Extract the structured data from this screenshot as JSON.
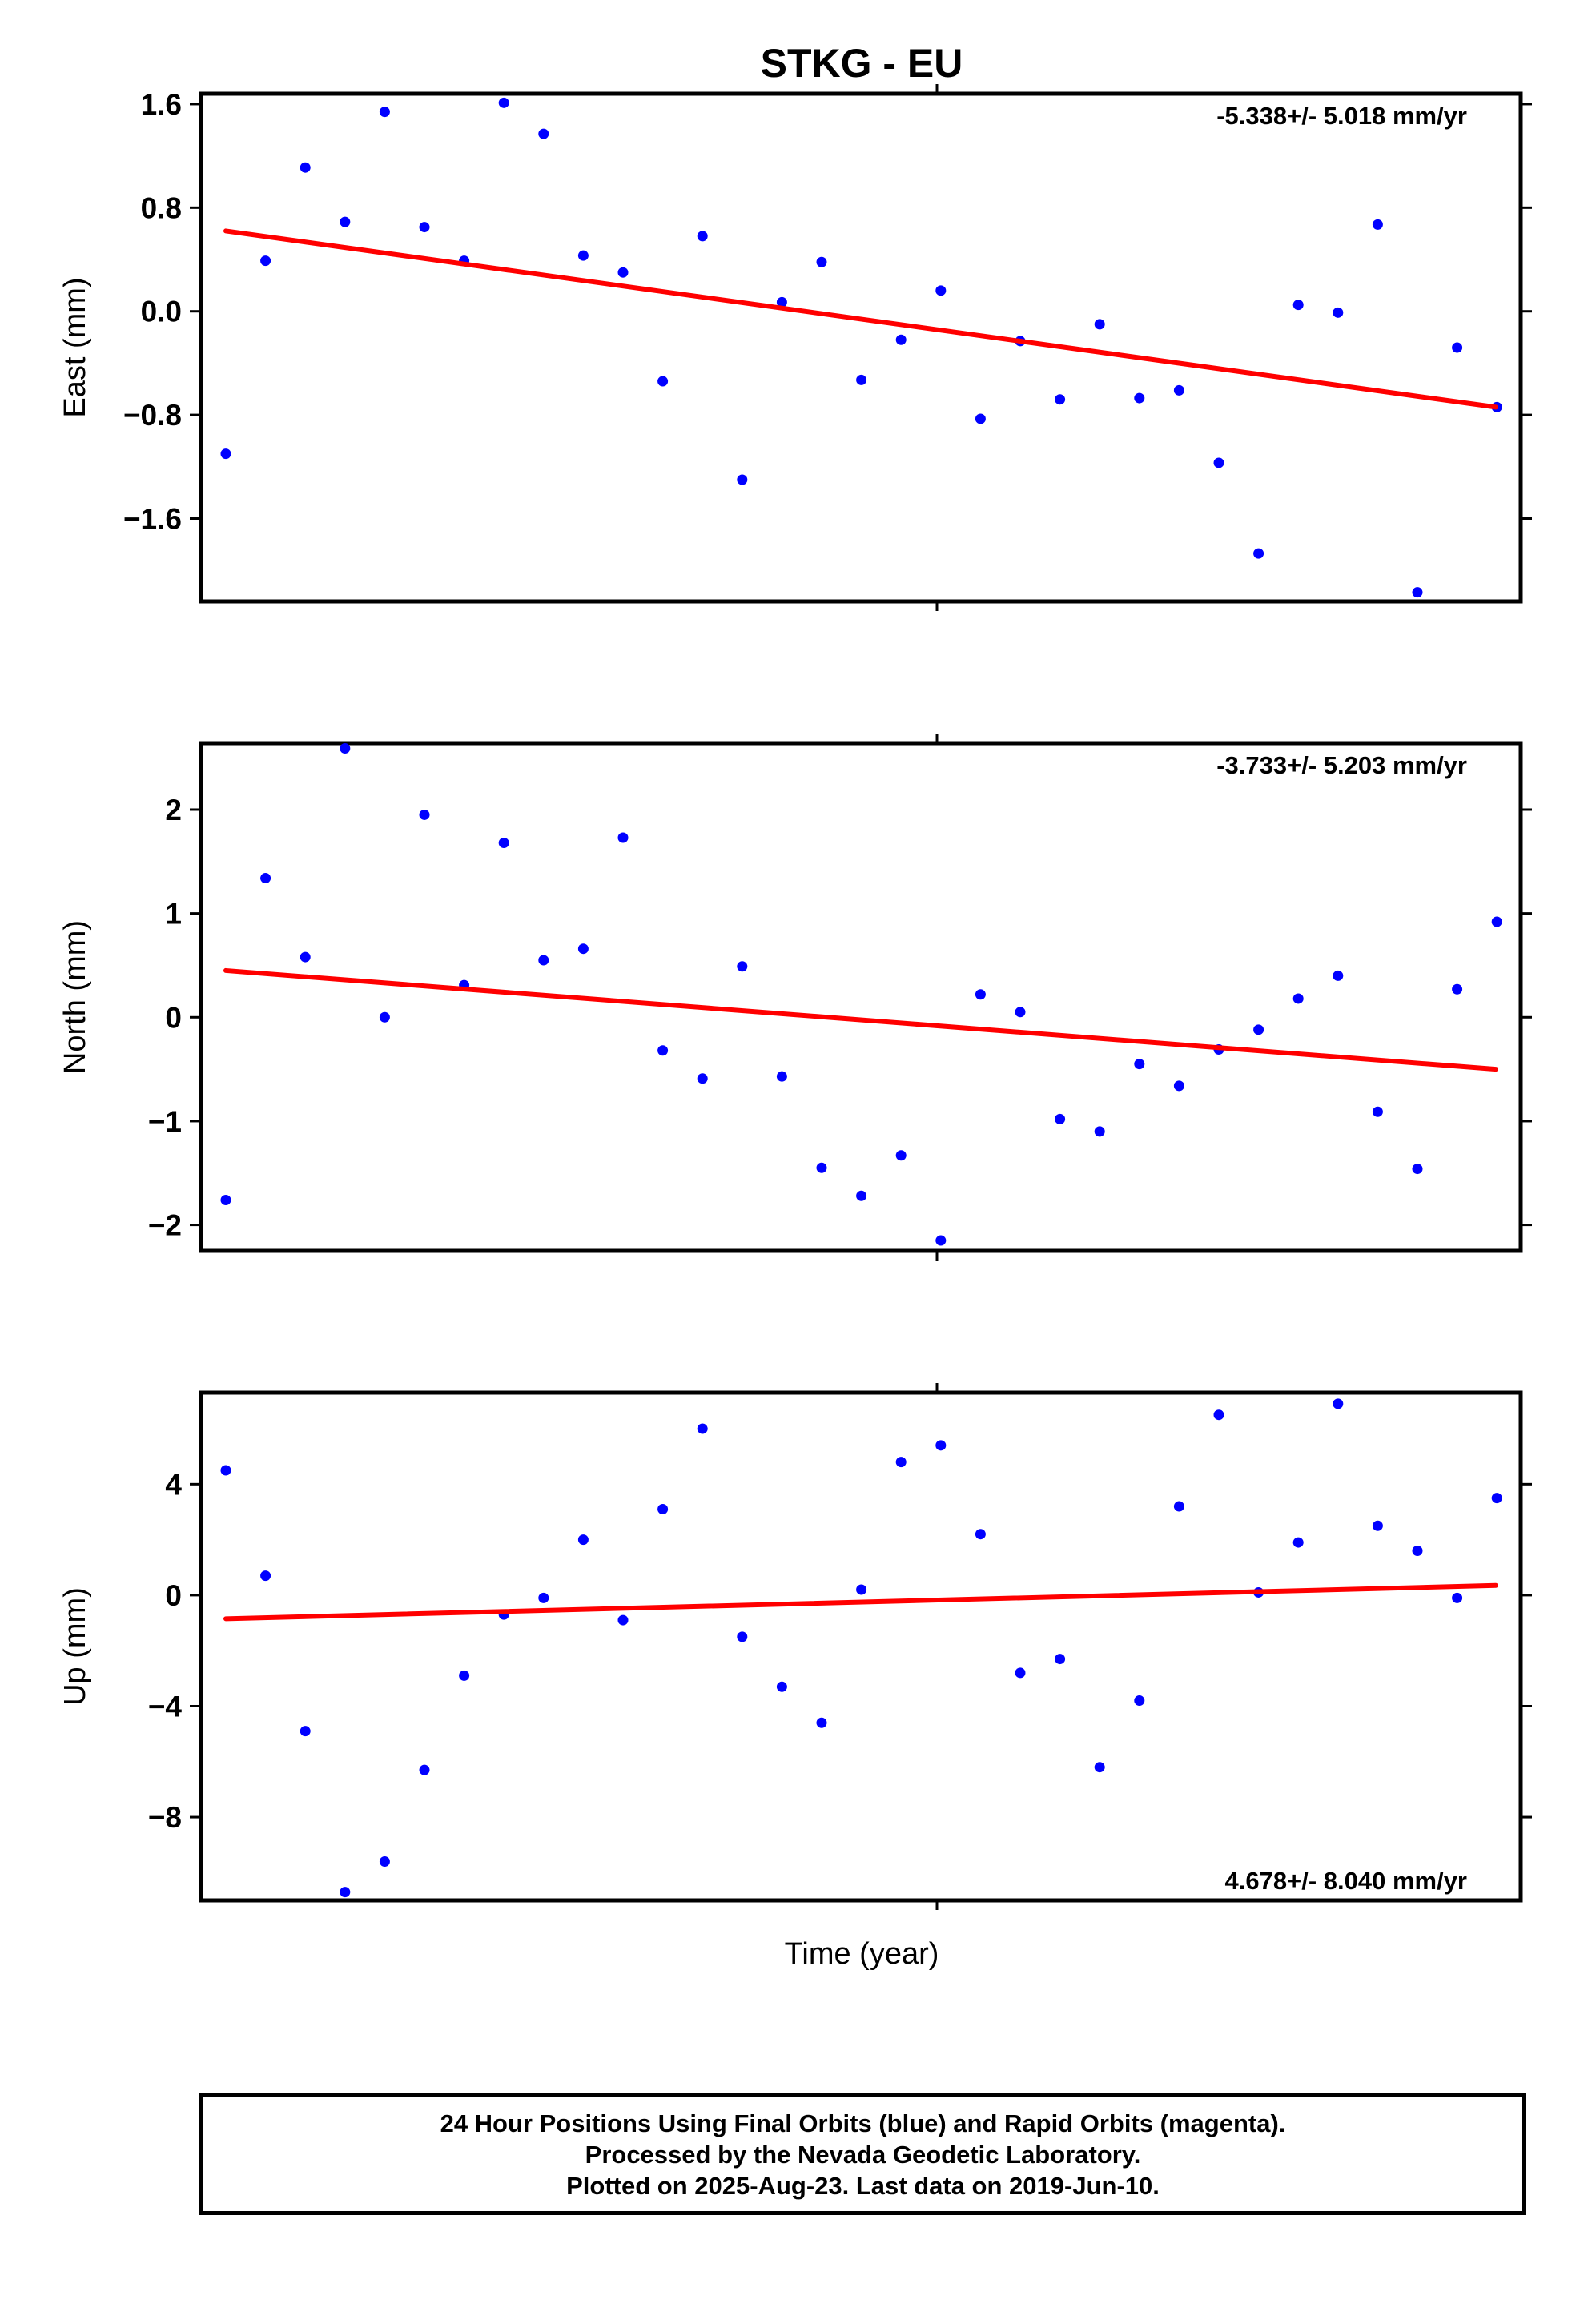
{
  "title": "STKG - EU",
  "xlabel": "Time (year)",
  "colors": {
    "final_orbits": "#0000ff",
    "trend_line": "#ff0000",
    "frame": "#000000"
  },
  "chart_data": [
    {
      "type": "scatter",
      "name": "east",
      "ylabel": "East (mm)",
      "rate_label": "-5.338+/- 5.018 mm/yr",
      "rate_position": "top-right",
      "ylim": [
        -2.24,
        1.68
      ],
      "yticks": [
        1.6,
        0.8,
        0.0,
        -0.8,
        -1.6
      ],
      "ytick_labels": [
        "1.6",
        "0.8",
        "0.0",
        "−0.8",
        "−1.6"
      ],
      "points": [
        -1.1,
        0.39,
        1.11,
        0.69,
        1.54,
        0.65,
        0.39,
        1.61,
        1.37,
        0.43,
        0.3,
        -0.54,
        0.58,
        -1.3,
        0.07,
        0.38,
        -0.53,
        -0.22,
        0.16,
        -0.83,
        -0.23,
        -0.68,
        -0.1,
        -0.67,
        -0.61,
        -1.17,
        -1.87,
        0.05,
        -0.01,
        0.67,
        -2.17,
        -0.28,
        -0.74
      ],
      "trend": [
        0.62,
        -0.74
      ]
    },
    {
      "type": "scatter",
      "name": "north",
      "ylabel": "North (mm)",
      "rate_label": "-3.733+/- 5.203 mm/yr",
      "rate_position": "top-right",
      "ylim": [
        -2.25,
        2.64
      ],
      "yticks": [
        2,
        1,
        0,
        -1,
        -2
      ],
      "ytick_labels": [
        "2",
        "1",
        "0",
        "−1",
        "−2"
      ],
      "points": [
        -1.76,
        1.34,
        0.58,
        2.59,
        0.0,
        1.95,
        0.31,
        1.68,
        0.55,
        0.66,
        1.73,
        -0.32,
        -0.59,
        0.49,
        -0.57,
        -1.45,
        -1.72,
        -1.33,
        -2.15,
        0.22,
        0.05,
        -0.98,
        -1.1,
        -0.45,
        -0.66,
        -0.31,
        -0.12,
        0.18,
        0.4,
        -0.91,
        -1.46,
        0.27,
        0.92
      ],
      "trend": [
        0.45,
        -0.5
      ]
    },
    {
      "type": "scatter",
      "name": "up",
      "ylabel": "Up (mm)",
      "rate_label": "4.678+/- 8.040 mm/yr",
      "rate_position": "bottom-right",
      "ylim": [
        -11.0,
        7.3
      ],
      "yticks": [
        4,
        0,
        -4,
        -8
      ],
      "ytick_labels": [
        "4",
        "0",
        "−4",
        "−8"
      ],
      "points": [
        4.5,
        0.7,
        -4.9,
        -10.7,
        -9.6,
        -6.3,
        -2.9,
        -0.7,
        -0.1,
        2.0,
        -0.9,
        3.1,
        6.0,
        -1.5,
        -3.3,
        -4.6,
        0.2,
        4.8,
        5.4,
        2.2,
        -2.8,
        -2.3,
        -6.2,
        -3.8,
        3.2,
        6.5,
        0.1,
        1.9,
        6.9,
        2.5,
        1.6,
        -0.1,
        3.5
      ],
      "trend": [
        -0.85,
        0.35
      ]
    }
  ],
  "footer": {
    "line1": "24 Hour Positions Using Final Orbits (blue) and Rapid Orbits (magenta).",
    "line2": "Processed by the Nevada Geodetic Laboratory.",
    "line3": "Plotted on 2025-Aug-23. Last data on 2019-Jun-10."
  }
}
